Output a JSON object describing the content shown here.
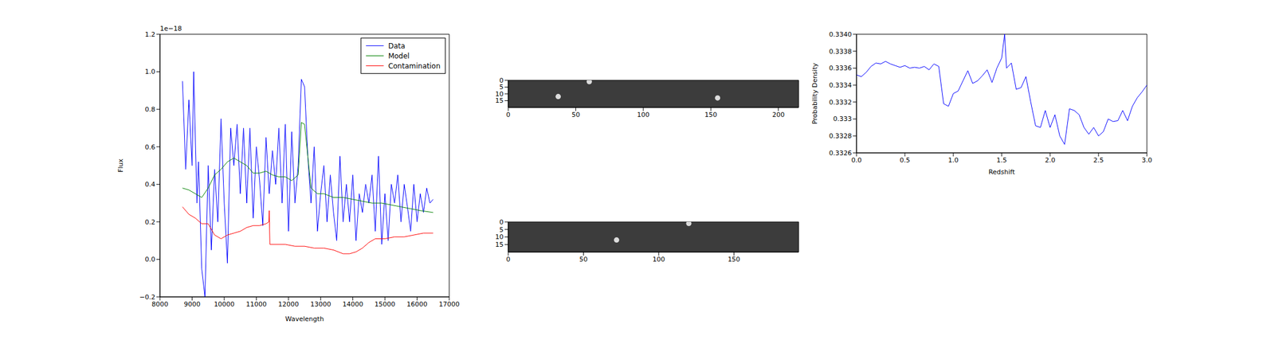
{
  "chart_data": [
    {
      "type": "line",
      "x_label": "Wavelength",
      "y_label": "Flux",
      "annotation": "1e−18",
      "xlim": [
        8000,
        17000
      ],
      "xticks": [
        8000,
        9000,
        10000,
        11000,
        12000,
        13000,
        14000,
        15000,
        16000,
        17000
      ],
      "ylim": [
        -0.2,
        1.2
      ],
      "yticks": [
        {
          "value": -0.2,
          "label": "−0.2"
        },
        {
          "value": 0,
          "label": "0.0"
        },
        0.2,
        0.4,
        0.6,
        0.8,
        {
          "value": 1.0,
          "label": "1.0"
        },
        1.2
      ],
      "legend": "upper right",
      "series": [
        {
          "name": "Data",
          "color": "#0000ff",
          "x": [
            8700,
            8800,
            8900,
            9000,
            9050,
            9150,
            9200,
            9300,
            9400,
            9500,
            9600,
            9700,
            9800,
            9900,
            10000,
            10100,
            10200,
            10300,
            10400,
            10500,
            10600,
            10700,
            10800,
            10900,
            11000,
            11100,
            11200,
            11300,
            11400,
            11500,
            11600,
            11700,
            11800,
            11900,
            12000,
            12100,
            12200,
            12300,
            12400,
            12500,
            12600,
            12700,
            12800,
            12900,
            13000,
            13100,
            13200,
            13300,
            13400,
            13500,
            13600,
            13700,
            13800,
            13900,
            14000,
            14100,
            14200,
            14300,
            14400,
            14500,
            14600,
            14700,
            14800,
            14900,
            15000,
            15100,
            15200,
            15300,
            15400,
            15500,
            15600,
            15700,
            15800,
            15900,
            16000,
            16100,
            16200,
            16300,
            16400,
            16500
          ],
          "values": [
            0.95,
            0.48,
            0.85,
            0.5,
            1.0,
            0.3,
            0.52,
            -0.05,
            -0.2,
            0.5,
            0.05,
            0.48,
            0.2,
            0.75,
            0.3,
            -0.02,
            0.7,
            0.5,
            0.72,
            0.35,
            0.7,
            0.3,
            0.7,
            0.22,
            0.6,
            0.42,
            0.18,
            0.65,
            0.35,
            0.58,
            0.4,
            0.7,
            0.3,
            0.72,
            0.15,
            0.68,
            0.3,
            0.5,
            0.96,
            0.92,
            0.55,
            0.3,
            0.6,
            0.15,
            0.35,
            0.5,
            0.2,
            0.45,
            0.25,
            0.1,
            0.55,
            0.2,
            0.4,
            0.2,
            0.45,
            0.1,
            0.35,
            0.25,
            0.4,
            0.3,
            0.45,
            0.15,
            0.55,
            0.08,
            0.35,
            0.1,
            0.4,
            0.3,
            0.45,
            0.2,
            0.4,
            0.28,
            0.15,
            0.4,
            0.2,
            0.35,
            0.25,
            0.38,
            0.3,
            0.32
          ]
        },
        {
          "name": "Model",
          "color": "#008000",
          "x": [
            8700,
            8900,
            9100,
            9300,
            9500,
            9700,
            9900,
            10100,
            10300,
            10500,
            10700,
            10900,
            11100,
            11300,
            11500,
            11700,
            11900,
            12100,
            12300,
            12400,
            12500,
            12600,
            12700,
            12900,
            13100,
            13400,
            13700,
            14000,
            14300,
            14600,
            14900,
            15200,
            15500,
            15800,
            16100,
            16500
          ],
          "values": [
            0.38,
            0.37,
            0.35,
            0.33,
            0.38,
            0.45,
            0.48,
            0.52,
            0.54,
            0.52,
            0.5,
            0.46,
            0.46,
            0.47,
            0.45,
            0.44,
            0.44,
            0.42,
            0.45,
            0.73,
            0.72,
            0.55,
            0.38,
            0.35,
            0.35,
            0.33,
            0.33,
            0.32,
            0.31,
            0.3,
            0.3,
            0.29,
            0.28,
            0.27,
            0.26,
            0.25
          ]
        },
        {
          "name": "Contamination",
          "color": "#ff0000",
          "x": [
            8700,
            8900,
            9100,
            9300,
            9500,
            9700,
            9900,
            10100,
            10300,
            10500,
            10700,
            10900,
            11100,
            11300,
            11390,
            11400,
            11420,
            11600,
            11900,
            12200,
            12500,
            12800,
            13100,
            13400,
            13700,
            13900,
            14100,
            14300,
            14500,
            14700,
            15000,
            15300,
            15600,
            15900,
            16200,
            16500
          ],
          "values": [
            0.28,
            0.24,
            0.22,
            0.19,
            0.19,
            0.13,
            0.11,
            0.13,
            0.14,
            0.15,
            0.17,
            0.18,
            0.18,
            0.19,
            0.2,
            0.26,
            0.08,
            0.08,
            0.08,
            0.07,
            0.07,
            0.06,
            0.06,
            0.05,
            0.03,
            0.03,
            0.04,
            0.06,
            0.09,
            0.11,
            0.11,
            0.12,
            0.12,
            0.13,
            0.14,
            0.14
          ]
        }
      ]
    },
    {
      "type": "image",
      "xlim": [
        0,
        215
      ],
      "xticks": [
        0,
        50,
        100,
        150,
        200
      ],
      "ylim": [
        0,
        20
      ],
      "yticks": [
        0,
        5,
        10,
        15
      ],
      "color": "#3c3c3c",
      "spots": {
        "x": [
          37,
          155,
          60
        ],
        "y": [
          12,
          13,
          1
        ],
        "color": "#dcdcdc"
      }
    },
    {
      "type": "image",
      "xlim": [
        0,
        193
      ],
      "xticks": [
        0,
        50,
        100,
        150
      ],
      "ylim": [
        0,
        20
      ],
      "yticks": [
        0,
        5,
        10,
        15
      ],
      "color": "#3c3c3c",
      "spots": {
        "x": [
          72,
          120
        ],
        "y": [
          12,
          1
        ],
        "color": "#dcdcdc"
      }
    },
    {
      "type": "line",
      "x_label": "Redshift",
      "y_label": "Probability Density",
      "xlim": [
        0,
        3
      ],
      "xticks": [
        {
          "value": 0,
          "label": "0.0"
        },
        0.5,
        {
          "value": 1,
          "label": "1.0"
        },
        1.5,
        {
          "value": 2,
          "label": "2.0"
        },
        2.5,
        {
          "value": 3,
          "label": "3.0"
        }
      ],
      "ylim": [
        0.3326,
        0.334
      ],
      "yticks": [
        0.3326,
        0.3328,
        0.333,
        0.3332,
        0.3334,
        0.3336,
        0.3338,
        {
          "value": 0.334,
          "label": "0.3340"
        }
      ],
      "color": "#0000ff",
      "x": [
        0,
        0.05,
        0.1,
        0.15,
        0.2,
        0.25,
        0.3,
        0.35,
        0.4,
        0.45,
        0.5,
        0.55,
        0.6,
        0.65,
        0.7,
        0.75,
        0.8,
        0.85,
        0.9,
        0.95,
        1.0,
        1.05,
        1.1,
        1.15,
        1.2,
        1.25,
        1.3,
        1.35,
        1.4,
        1.45,
        1.5,
        1.53,
        1.55,
        1.6,
        1.65,
        1.7,
        1.75,
        1.8,
        1.85,
        1.9,
        1.95,
        2.0,
        2.05,
        2.1,
        2.15,
        2.2,
        2.25,
        2.3,
        2.35,
        2.4,
        2.45,
        2.5,
        2.55,
        2.6,
        2.65,
        2.7,
        2.75,
        2.8,
        2.85,
        2.9,
        2.95,
        3.0
      ],
      "values": [
        0.33352,
        0.3335,
        0.33355,
        0.33362,
        0.33366,
        0.33365,
        0.33368,
        0.33365,
        0.33363,
        0.33361,
        0.33363,
        0.3336,
        0.33361,
        0.3336,
        0.33362,
        0.33358,
        0.33365,
        0.33362,
        0.33318,
        0.33315,
        0.3333,
        0.33333,
        0.33345,
        0.33357,
        0.33342,
        0.33345,
        0.33351,
        0.33358,
        0.33343,
        0.3336,
        0.33372,
        0.334,
        0.3336,
        0.33366,
        0.33335,
        0.33337,
        0.3335,
        0.3332,
        0.33292,
        0.3329,
        0.3331,
        0.3329,
        0.33305,
        0.3328,
        0.3327,
        0.33312,
        0.3331,
        0.33305,
        0.3329,
        0.33282,
        0.3329,
        0.3328,
        0.33285,
        0.333,
        0.33297,
        0.33298,
        0.3331,
        0.33298,
        0.33315,
        0.33325,
        0.33332,
        0.3334
      ]
    }
  ]
}
